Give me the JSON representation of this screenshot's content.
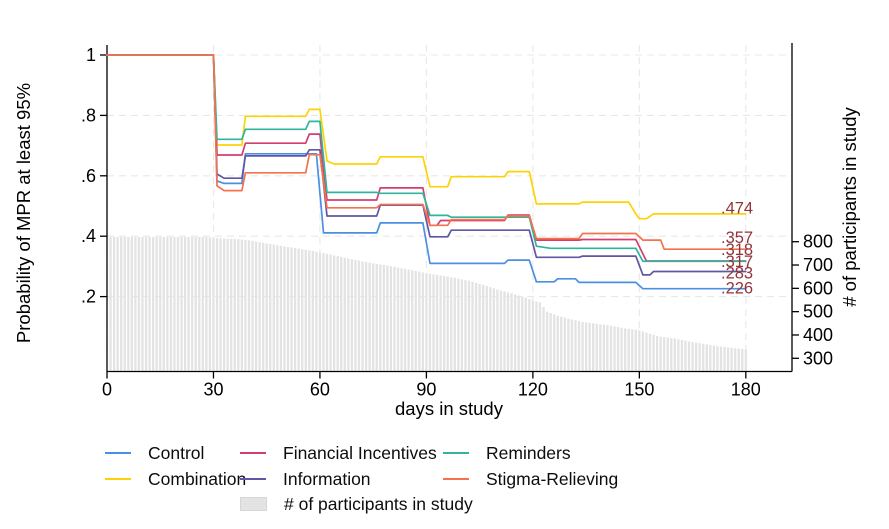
{
  "chart_data": {
    "type": "line",
    "title": "",
    "xlabel": "days in study",
    "ylabel_left": "Probability of MPR at least 95%",
    "ylabel_right": "# of participants in study",
    "x_ticks": [
      0,
      30,
      60,
      90,
      120,
      150,
      180
    ],
    "x_range_days": [
      0,
      193
    ],
    "y_left_ticks": [
      {
        "label": "1",
        "value": 1
      },
      {
        "label": ".8",
        "value": 0.8
      },
      {
        "label": ".6",
        "value": 0.6
      },
      {
        "label": ".4",
        "value": 0.4
      },
      {
        "label": ".2",
        "value": 0.2
      }
    ],
    "y_left_range": [
      0,
      1.05
    ],
    "y_right_ticks": [
      800,
      700,
      600,
      500,
      400,
      300
    ],
    "y_right_range": [
      300,
      850
    ],
    "grid": true,
    "legend_position": "bottom",
    "end_label_color": "#90353b",
    "series": [
      {
        "name": "Control",
        "color": "#4a90e2",
        "end_label": ".226",
        "points": [
          [
            0,
            1
          ],
          [
            30,
            1
          ],
          [
            31,
            0.583
          ],
          [
            33,
            0.575
          ],
          [
            38,
            0.575
          ],
          [
            39,
            0.673
          ],
          [
            59,
            0.673
          ],
          [
            61,
            0.411
          ],
          [
            76,
            0.411
          ],
          [
            77,
            0.444
          ],
          [
            89,
            0.444
          ],
          [
            91,
            0.31
          ],
          [
            112,
            0.31
          ],
          [
            113,
            0.321
          ],
          [
            119,
            0.321
          ],
          [
            121,
            0.249
          ],
          [
            126,
            0.249
          ],
          [
            127,
            0.259
          ],
          [
            132,
            0.259
          ],
          [
            133,
            0.247
          ],
          [
            149,
            0.247
          ],
          [
            151,
            0.226
          ],
          [
            180,
            0.226
          ]
        ]
      },
      {
        "name": "Combination",
        "color": "#fdd306",
        "end_label": ".474",
        "points": [
          [
            0,
            1
          ],
          [
            30,
            1
          ],
          [
            31,
            0.702
          ],
          [
            38,
            0.702
          ],
          [
            39,
            0.797
          ],
          [
            56,
            0.797
          ],
          [
            57,
            0.82
          ],
          [
            60,
            0.82
          ],
          [
            62,
            0.649
          ],
          [
            64,
            0.639
          ],
          [
            76,
            0.639
          ],
          [
            77,
            0.663
          ],
          [
            89,
            0.663
          ],
          [
            91,
            0.564
          ],
          [
            96,
            0.564
          ],
          [
            97,
            0.597
          ],
          [
            112,
            0.597
          ],
          [
            113,
            0.614
          ],
          [
            119,
            0.614
          ],
          [
            121,
            0.507
          ],
          [
            133,
            0.507
          ],
          [
            134,
            0.513
          ],
          [
            147,
            0.513
          ],
          [
            149,
            0.474
          ],
          [
            150,
            0.458
          ],
          [
            152,
            0.458
          ],
          [
            154,
            0.474
          ],
          [
            180,
            0.474
          ]
        ]
      },
      {
        "name": "Financial Incentives",
        "color": "#d23f6f",
        "end_label": ".318",
        "points": [
          [
            0,
            1
          ],
          [
            30,
            1
          ],
          [
            31,
            0.669
          ],
          [
            38,
            0.669
          ],
          [
            39,
            0.708
          ],
          [
            56,
            0.708
          ],
          [
            57,
            0.738
          ],
          [
            60,
            0.738
          ],
          [
            62,
            0.52
          ],
          [
            76,
            0.52
          ],
          [
            77,
            0.56
          ],
          [
            89,
            0.56
          ],
          [
            91,
            0.436
          ],
          [
            93,
            0.436
          ],
          [
            94,
            0.452
          ],
          [
            112,
            0.452
          ],
          [
            113,
            0.47
          ],
          [
            119,
            0.47
          ],
          [
            121,
            0.387
          ],
          [
            133,
            0.387
          ],
          [
            134,
            0.389
          ],
          [
            149,
            0.389
          ],
          [
            152,
            0.318
          ],
          [
            180,
            0.318
          ]
        ]
      },
      {
        "name": "Information",
        "color": "#6155a5",
        "end_label": ".283",
        "points": [
          [
            0,
            1
          ],
          [
            30,
            1
          ],
          [
            31,
            0.606
          ],
          [
            33,
            0.592
          ],
          [
            38,
            0.592
          ],
          [
            39,
            0.666
          ],
          [
            56,
            0.666
          ],
          [
            57,
            0.686
          ],
          [
            60,
            0.686
          ],
          [
            62,
            0.467
          ],
          [
            76,
            0.467
          ],
          [
            77,
            0.503
          ],
          [
            89,
            0.503
          ],
          [
            91,
            0.398
          ],
          [
            96,
            0.398
          ],
          [
            97,
            0.42
          ],
          [
            119,
            0.42
          ],
          [
            121,
            0.33
          ],
          [
            133,
            0.33
          ],
          [
            134,
            0.334
          ],
          [
            149,
            0.334
          ],
          [
            151,
            0.272
          ],
          [
            153,
            0.272
          ],
          [
            154,
            0.283
          ],
          [
            180,
            0.283
          ]
        ]
      },
      {
        "name": "Reminders",
        "color": "#2fb59d",
        "end_label": ".317",
        "points": [
          [
            0,
            1
          ],
          [
            30,
            1
          ],
          [
            31,
            0.721
          ],
          [
            38,
            0.721
          ],
          [
            39,
            0.754
          ],
          [
            56,
            0.754
          ],
          [
            57,
            0.78
          ],
          [
            60,
            0.78
          ],
          [
            62,
            0.545
          ],
          [
            76,
            0.545
          ],
          [
            77,
            0.542
          ],
          [
            89,
            0.542
          ],
          [
            91,
            0.469
          ],
          [
            96,
            0.469
          ],
          [
            97,
            0.463
          ],
          [
            119,
            0.463
          ],
          [
            121,
            0.367
          ],
          [
            125,
            0.36
          ],
          [
            149,
            0.36
          ],
          [
            151,
            0.317
          ],
          [
            180,
            0.317
          ]
        ]
      },
      {
        "name": "Stigma-Relieving",
        "color": "#f4724d",
        "end_label": ".357",
        "points": [
          [
            0,
            1
          ],
          [
            30,
            1
          ],
          [
            31,
            0.567
          ],
          [
            33,
            0.551
          ],
          [
            38,
            0.551
          ],
          [
            39,
            0.61
          ],
          [
            56,
            0.61
          ],
          [
            57,
            0.67
          ],
          [
            60,
            0.67
          ],
          [
            62,
            0.494
          ],
          [
            76,
            0.494
          ],
          [
            77,
            0.505
          ],
          [
            89,
            0.505
          ],
          [
            91,
            0.436
          ],
          [
            96,
            0.436
          ],
          [
            97,
            0.455
          ],
          [
            112,
            0.455
          ],
          [
            113,
            0.467
          ],
          [
            119,
            0.467
          ],
          [
            121,
            0.392
          ],
          [
            133,
            0.392
          ],
          [
            134,
            0.409
          ],
          [
            149,
            0.409
          ],
          [
            151,
            0.387
          ],
          [
            156,
            0.387
          ],
          [
            157,
            0.357
          ],
          [
            180,
            0.357
          ]
        ]
      }
    ],
    "participants_bars": {
      "name": "# of participants in study",
      "color": "#e3e3e3",
      "axis": "right",
      "anchors": [
        [
          1,
          820
        ],
        [
          28,
          820
        ],
        [
          31,
          815
        ],
        [
          36,
          812
        ],
        [
          40,
          806
        ],
        [
          46,
          790
        ],
        [
          52,
          775
        ],
        [
          58,
          760
        ],
        [
          62,
          748
        ],
        [
          68,
          728
        ],
        [
          74,
          710
        ],
        [
          80,
          695
        ],
        [
          86,
          678
        ],
        [
          90,
          665
        ],
        [
          94,
          655
        ],
        [
          98,
          645
        ],
        [
          102,
          632
        ],
        [
          106,
          615
        ],
        [
          110,
          595
        ],
        [
          114,
          578
        ],
        [
          118,
          560
        ],
        [
          120,
          548
        ],
        [
          122,
          540
        ],
        [
          124,
          500
        ],
        [
          127,
          482
        ],
        [
          130,
          470
        ],
        [
          134,
          456
        ],
        [
          138,
          448
        ],
        [
          142,
          440
        ],
        [
          146,
          428
        ],
        [
          150,
          420
        ],
        [
          153,
          405
        ],
        [
          156,
          392
        ],
        [
          160,
          385
        ],
        [
          164,
          372
        ],
        [
          168,
          362
        ],
        [
          172,
          352
        ],
        [
          176,
          345
        ],
        [
          180,
          338
        ]
      ]
    }
  },
  "legend": {
    "items": [
      {
        "label": "Control",
        "color": "#4a90e2",
        "swatch": "line"
      },
      {
        "label": "Financial Incentives",
        "color": "#d23f6f",
        "swatch": "line"
      },
      {
        "label": "Reminders",
        "color": "#2fb59d",
        "swatch": "line"
      },
      {
        "label": "Combination",
        "color": "#fdd306",
        "swatch": "line"
      },
      {
        "label": "Information",
        "color": "#6155a5",
        "swatch": "line"
      },
      {
        "label": "Stigma-Relieving",
        "color": "#f4724d",
        "swatch": "line"
      },
      {
        "label": "# of participants in study",
        "color": "#e3e3e3",
        "swatch": "box"
      }
    ]
  }
}
